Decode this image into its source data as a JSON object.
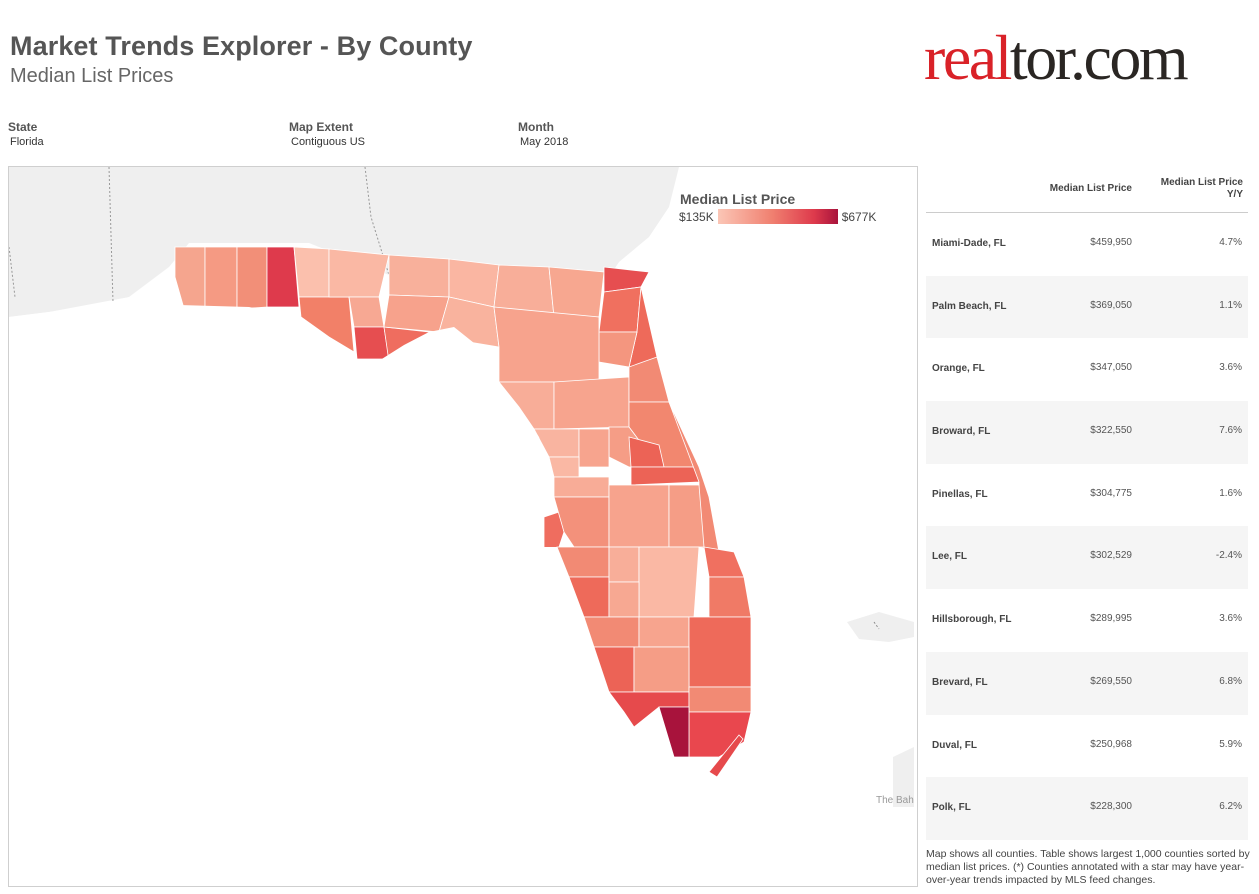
{
  "header": {
    "title": "Market Trends Explorer - By County",
    "subtitle": "Median List Prices"
  },
  "brand": {
    "logo_red": "real",
    "logo_dark": "tor.com",
    "accent": "#d92228"
  },
  "filters": [
    {
      "label": "State",
      "value": "Florida"
    },
    {
      "label": "Map Extent",
      "value": "Contiguous US"
    },
    {
      "label": "Month",
      "value": "May 2018"
    }
  ],
  "map": {
    "legend_title": "Median List Price",
    "legend_min": "$135K",
    "legend_max": "$677K",
    "place_label": "The Bah",
    "colors": {
      "low": "#fbc6b6",
      "high": "#a8133c",
      "land": "#efefef",
      "water": "#ffffff"
    }
  },
  "table": {
    "columns": [
      "Median List Price",
      "Median List Price Y/Y"
    ],
    "col_price": "Median List Price",
    "col_yy_line1": "Median List Price",
    "col_yy_line2": "Y/Y",
    "rows": [
      {
        "county": "Miami-Dade, FL",
        "price": "$459,950",
        "yy": "4.7%"
      },
      {
        "county": "Palm Beach, FL",
        "price": "$369,050",
        "yy": "1.1%"
      },
      {
        "county": "Orange, FL",
        "price": "$347,050",
        "yy": "3.6%"
      },
      {
        "county": "Broward, FL",
        "price": "$322,550",
        "yy": "7.6%"
      },
      {
        "county": "Pinellas, FL",
        "price": "$304,775",
        "yy": "1.6%"
      },
      {
        "county": "Lee, FL",
        "price": "$302,529",
        "yy": "-2.4%"
      },
      {
        "county": "Hillsborough, FL",
        "price": "$289,995",
        "yy": "3.6%"
      },
      {
        "county": "Brevard, FL",
        "price": "$269,550",
        "yy": "6.8%"
      },
      {
        "county": "Duval, FL",
        "price": "$250,968",
        "yy": "5.9%"
      },
      {
        "county": "Polk, FL",
        "price": "$228,300",
        "yy": "6.2%"
      }
    ]
  },
  "footnote": "Map shows all counties. Table shows largest 1,000 counties sorted by median list prices. (*) Counties annotated with a star may have year-over-year trends impacted by MLS feed changes."
}
